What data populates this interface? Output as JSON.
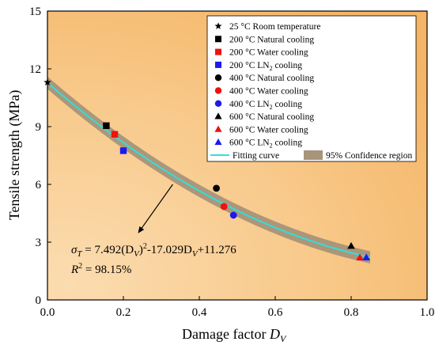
{
  "chart_data": {
    "type": "scatter",
    "xlabel": "Damage factor",
    "xlabel_var": "D",
    "xlabel_sub": "V",
    "ylabel": "Tensile strength (MPa)",
    "xlim": [
      0.0,
      1.0
    ],
    "ylim": [
      0,
      15
    ],
    "xticks": [
      "0.0",
      "0.2",
      "0.4",
      "0.6",
      "0.8",
      "1.0"
    ],
    "yticks": [
      "0",
      "3",
      "6",
      "9",
      "12",
      "15"
    ],
    "legend_position": "top-right",
    "background": "orange-gradient",
    "series": [
      {
        "name": "25 °C Room temperature",
        "marker": "star",
        "color": "#000000",
        "points": [
          [
            0.0,
            11.3
          ]
        ]
      },
      {
        "name": "200 °C Natural cooling",
        "marker": "square",
        "color": "#000000",
        "points": [
          [
            0.155,
            9.05
          ]
        ]
      },
      {
        "name": "200 °C Water cooling",
        "marker": "square",
        "color": "#ee1111",
        "points": [
          [
            0.177,
            8.6
          ]
        ]
      },
      {
        "name": "200 °C LN",
        "name_sub": "2",
        "name_suffix": " cooling",
        "marker": "square",
        "color": "#1a1aee",
        "points": [
          [
            0.2,
            7.75
          ]
        ]
      },
      {
        "name": "400 °C Natural cooling",
        "marker": "circle",
        "color": "#000000",
        "points": [
          [
            0.445,
            5.8
          ]
        ]
      },
      {
        "name": "400 °C Water cooling",
        "marker": "circle",
        "color": "#ee1111",
        "points": [
          [
            0.465,
            4.85
          ]
        ]
      },
      {
        "name": "400 °C LN",
        "name_sub": "2",
        "name_suffix": " cooling",
        "marker": "circle",
        "color": "#1a1aee",
        "points": [
          [
            0.49,
            4.4
          ]
        ]
      },
      {
        "name": "600 °C Natural cooling",
        "marker": "triangle",
        "color": "#000000",
        "points": [
          [
            0.8,
            2.8
          ]
        ]
      },
      {
        "name": "600 °C Water cooling",
        "marker": "triangle",
        "color": "#ee1111",
        "points": [
          [
            0.823,
            2.2
          ]
        ]
      },
      {
        "name": "600 °C LN",
        "name_sub": "2",
        "name_suffix": " cooling",
        "marker": "triangle",
        "color": "#1a1aee",
        "points": [
          [
            0.84,
            2.2
          ]
        ]
      }
    ],
    "fit": {
      "name": "Fitting curve",
      "color": "#33dddd",
      "coefficients": {
        "a": 7.492,
        "b": -17.029,
        "c": 11.276
      },
      "x_range": [
        0.0,
        0.85
      ]
    },
    "confidence": {
      "name": "95% Confidence region",
      "color": "#a89478",
      "half_width": 0.32
    },
    "annotation": {
      "equation_sym": "σ",
      "equation_sym_sub": "T",
      "equation_body": " = 7.492(D",
      "equation_sub1": "V",
      "equation_part2": ")",
      "equation_sup": "2",
      "equation_part3": "-17.029D",
      "equation_sub2": "V",
      "equation_part4": "+11.276",
      "r2_label": "R",
      "r2_sup": "2",
      "r2_value": " = 98.15%",
      "arrow_from": [
        0.33,
        6.0
      ],
      "arrow_to": [
        0.24,
        3.5
      ]
    }
  }
}
